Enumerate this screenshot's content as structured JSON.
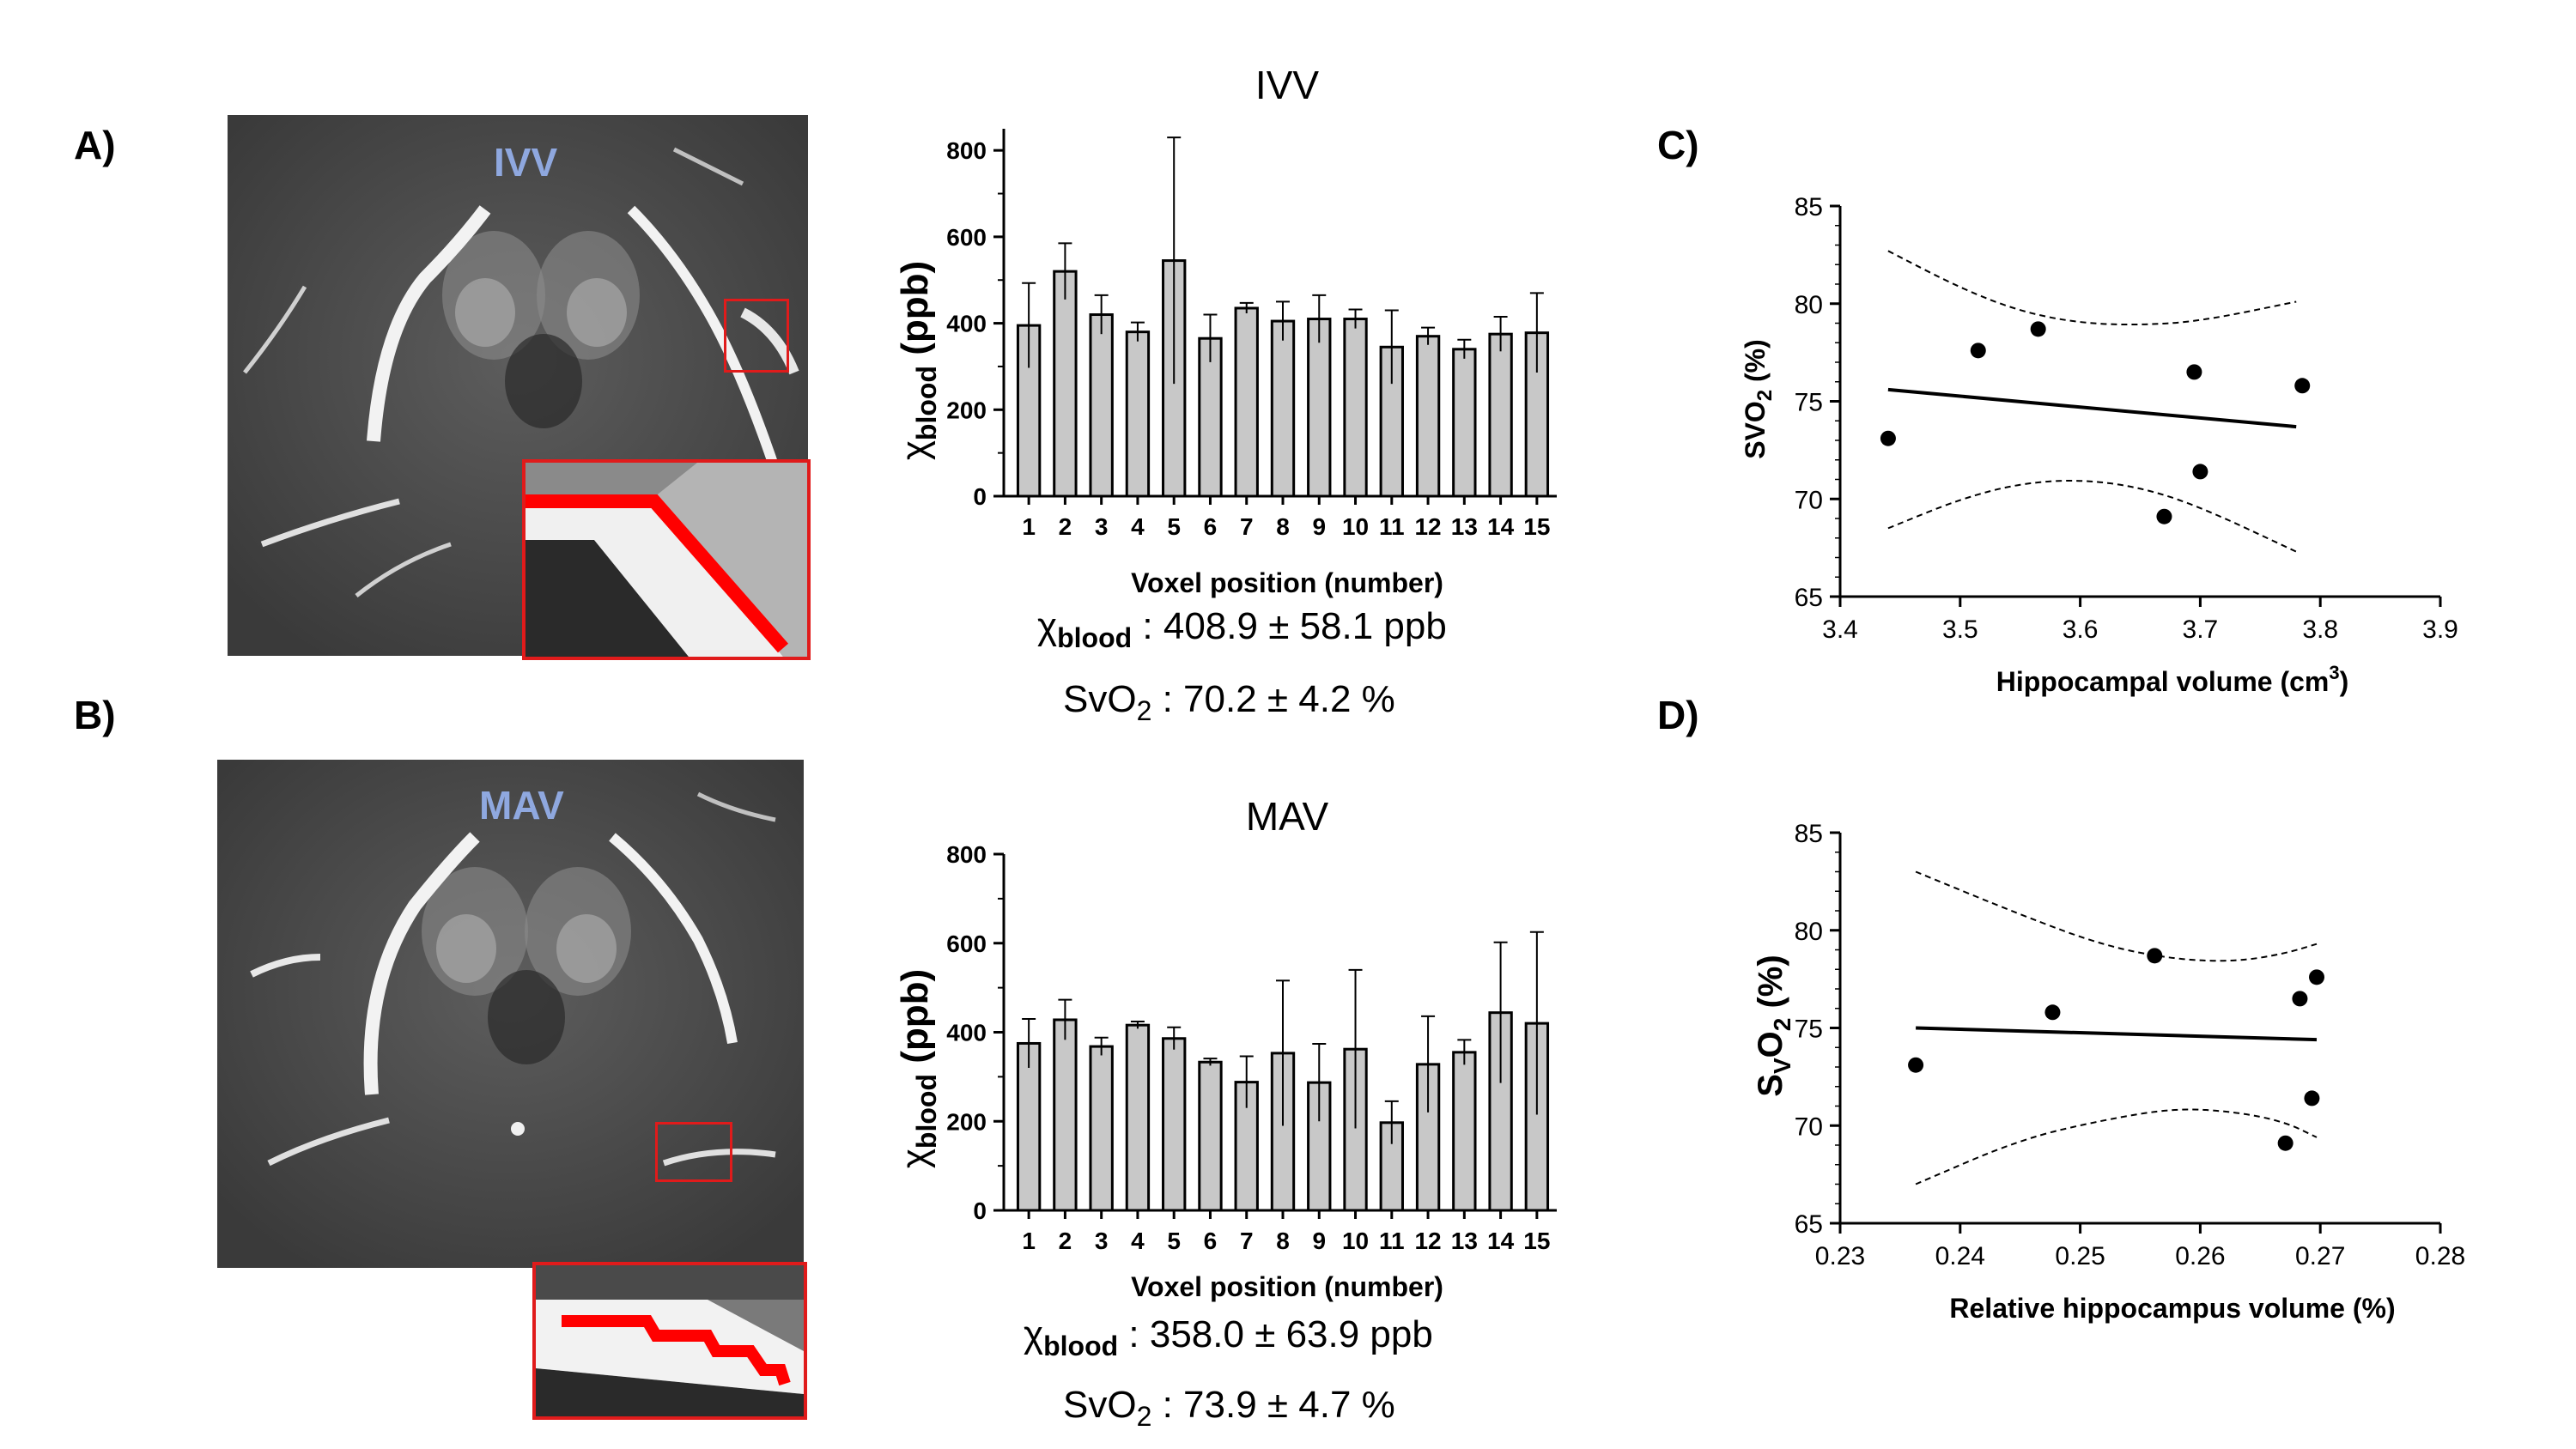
{
  "panels": {
    "A": "A)",
    "B": "B)",
    "C": "C)",
    "D": "D)"
  },
  "images": {
    "ivv_tag": "IVV",
    "mav_tag": "MAV",
    "roi_color": "#e01b1b",
    "tag_color": "#8fa8df"
  },
  "summaries": {
    "ivv": {
      "chi_symbol": "χ",
      "chi_sub": "blood",
      "chi_value": " : 408.9 ± 58.1 ppb",
      "svo2_label": "SvO",
      "svo2_sub": "2",
      "svo2_value": " : 70.2 ± 4.2 %"
    },
    "mav": {
      "chi_symbol": "χ",
      "chi_sub": "blood",
      "chi_value": " : 358.0 ± 63.9 ppb",
      "svo2_label": "SvO",
      "svo2_sub": "2",
      "svo2_value": " : 73.9 ± 4.7 %"
    }
  },
  "chart_data": [
    {
      "id": "ivv_bar",
      "type": "bar",
      "title": "IVV",
      "xlabel": "Voxel position (number)",
      "ylabel_symbol": "χ",
      "ylabel_sub": "blood",
      "ylabel_unit": "(ppb)",
      "categories": [
        "1",
        "2",
        "3",
        "4",
        "5",
        "6",
        "7",
        "8",
        "9",
        "10",
        "11",
        "12",
        "13",
        "14",
        "15"
      ],
      "values": [
        395,
        520,
        420,
        380,
        545,
        365,
        435,
        405,
        410,
        410,
        345,
        370,
        340,
        375,
        378
      ],
      "errors": [
        98,
        65,
        45,
        22,
        285,
        55,
        12,
        45,
        55,
        22,
        85,
        20,
        22,
        40,
        92
      ],
      "ylim": [
        0,
        850
      ],
      "yticks": [
        0,
        200,
        400,
        600,
        800
      ],
      "bar_color": "#c8c8c8"
    },
    {
      "id": "mav_bar",
      "type": "bar",
      "title": "MAV",
      "xlabel": "Voxel position (number)",
      "ylabel_symbol": "χ",
      "ylabel_sub": "blood",
      "ylabel_unit": "(ppb)",
      "categories": [
        "1",
        "2",
        "3",
        "4",
        "5",
        "6",
        "7",
        "8",
        "9",
        "10",
        "11",
        "12",
        "13",
        "14",
        "15"
      ],
      "values": [
        375,
        428,
        368,
        416,
        386,
        333,
        288,
        353,
        287,
        362,
        197,
        328,
        355,
        444,
        420
      ],
      "errors": [
        55,
        45,
        20,
        8,
        25,
        8,
        58,
        163,
        87,
        178,
        48,
        108,
        28,
        158,
        205
      ],
      "ylim": [
        0,
        800
      ],
      "yticks": [
        0,
        200,
        400,
        600,
        800
      ],
      "bar_color": "#c8c8c8"
    },
    {
      "id": "scatter_c",
      "type": "scatter",
      "xlabel": "Hippocampal volume (cm",
      "xlabel_sup": "3",
      "xlabel_tail": ")",
      "ylabel": "SVO",
      "ylabel_sub": "2",
      "ylabel_tail": " (%)",
      "xlim": [
        3.4,
        3.9
      ],
      "ylim": [
        65,
        85
      ],
      "xticks": [
        "3.4",
        "3.5",
        "3.6",
        "3.7",
        "3.8",
        "3.9"
      ],
      "yticks": [
        "65",
        "70",
        "75",
        "80",
        "85"
      ],
      "points": [
        [
          3.44,
          73.1
        ],
        [
          3.515,
          77.6
        ],
        [
          3.565,
          78.7
        ],
        [
          3.67,
          69.1
        ],
        [
          3.695,
          76.5
        ],
        [
          3.7,
          71.4
        ],
        [
          3.785,
          75.8
        ]
      ],
      "fit": [
        [
          3.44,
          75.6
        ],
        [
          3.78,
          73.7
        ]
      ],
      "ci_upper": [
        [
          3.44,
          82.7
        ],
        [
          3.5,
          80.8
        ],
        [
          3.55,
          79.6
        ],
        [
          3.6,
          79.0
        ],
        [
          3.65,
          78.9
        ],
        [
          3.7,
          79.1
        ],
        [
          3.78,
          80.1
        ]
      ],
      "ci_lower": [
        [
          3.44,
          68.5
        ],
        [
          3.5,
          70.0
        ],
        [
          3.55,
          70.8
        ],
        [
          3.6,
          71.0
        ],
        [
          3.65,
          70.6
        ],
        [
          3.7,
          69.6
        ],
        [
          3.78,
          67.3
        ]
      ]
    },
    {
      "id": "scatter_d",
      "type": "scatter",
      "xlabel": "Relative hippocampus volume (%)",
      "ylabel": "S",
      "ylabel_sub": "V",
      "ylabel_mid": "O",
      "ylabel_sub2": "2",
      "ylabel_tail": " (%)",
      "xlim": [
        0.23,
        0.28
      ],
      "ylim": [
        65,
        85
      ],
      "xticks": [
        "0.23",
        "0.24",
        "0.25",
        "0.26",
        "0.27",
        "0.28"
      ],
      "yticks": [
        "65",
        "70",
        "75",
        "80",
        "85"
      ],
      "points": [
        [
          0.2363,
          73.1
        ],
        [
          0.2477,
          75.8
        ],
        [
          0.2562,
          78.7
        ],
        [
          0.2671,
          69.1
        ],
        [
          0.2683,
          76.5
        ],
        [
          0.2693,
          71.4
        ],
        [
          0.2697,
          77.6
        ]
      ],
      "fit": [
        [
          0.2363,
          75.0
        ],
        [
          0.2697,
          74.4
        ]
      ],
      "ci_upper": [
        [
          0.2363,
          83.0
        ],
        [
          0.245,
          80.8
        ],
        [
          0.252,
          79.2
        ],
        [
          0.258,
          78.5
        ],
        [
          0.263,
          78.4
        ],
        [
          0.267,
          78.8
        ],
        [
          0.2697,
          79.3
        ]
      ],
      "ci_lower": [
        [
          0.2363,
          67.0
        ],
        [
          0.245,
          69.3
        ],
        [
          0.252,
          70.3
        ],
        [
          0.258,
          70.9
        ],
        [
          0.263,
          70.7
        ],
        [
          0.267,
          70.2
        ],
        [
          0.2697,
          69.4
        ]
      ]
    }
  ]
}
